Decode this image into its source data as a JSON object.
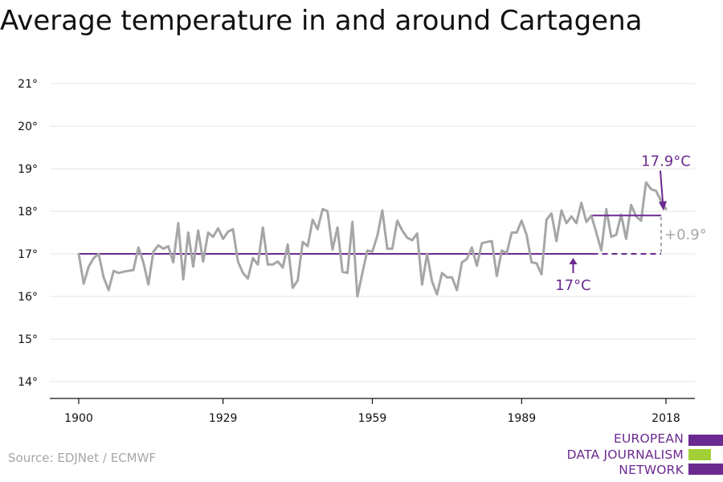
{
  "chart_data": {
    "type": "line",
    "title": "Average temperature in and around Cartagena",
    "xlabel": "",
    "ylabel": "",
    "x_ticks": [
      1900,
      1929,
      1959,
      1989,
      2018
    ],
    "y_ticks": [
      "14°",
      "15°",
      "16°",
      "17°",
      "18°",
      "19°",
      "20°",
      "21°"
    ],
    "y_tick_values": [
      14,
      15,
      16,
      17,
      18,
      19,
      20,
      21
    ],
    "xlim": [
      1900,
      2018
    ],
    "ylim": [
      14,
      21
    ],
    "grid": true,
    "series": [
      {
        "x": [
          1900,
          1901,
          1902,
          1903,
          1904,
          1905,
          1906,
          1907,
          1908,
          1909,
          1910,
          1911,
          1912,
          1913,
          1914,
          1915,
          1916,
          1917,
          1918,
          1919,
          1920,
          1921,
          1922,
          1923,
          1924,
          1925,
          1926,
          1927,
          1928,
          1929,
          1930,
          1931,
          1932,
          1933,
          1934,
          1935,
          1936,
          1937,
          1938,
          1939,
          1940,
          1941,
          1942,
          1943,
          1944,
          1945,
          1946,
          1947,
          1948,
          1949,
          1950,
          1951,
          1952,
          1953,
          1954,
          1955,
          1956,
          1957,
          1958,
          1959,
          1960,
          1961,
          1962,
          1963,
          1964,
          1965,
          1966,
          1967,
          1968,
          1969,
          1970,
          1971,
          1972,
          1973,
          1974,
          1975,
          1976,
          1977,
          1978,
          1979,
          1980,
          1981,
          1982,
          1983,
          1984,
          1985,
          1986,
          1987,
          1988,
          1989,
          1990,
          1991,
          1992,
          1993,
          1994,
          1995,
          1996,
          1997,
          1998,
          1999,
          2000,
          2001,
          2002,
          2003,
          2004,
          2005,
          2006,
          2007,
          2008,
          2009,
          2010,
          2011,
          2012,
          2013,
          2014,
          2015,
          2016,
          2017,
          2018
        ],
        "values": [
          17.0,
          16.3,
          16.7,
          16.9,
          17.0,
          16.45,
          16.15,
          16.6,
          16.55,
          16.58,
          16.6,
          16.62,
          17.15,
          16.8,
          16.28,
          17.05,
          17.2,
          17.12,
          17.18,
          16.8,
          17.72,
          16.4,
          17.5,
          16.7,
          17.55,
          16.82,
          17.5,
          17.4,
          17.6,
          17.35,
          17.52,
          17.58,
          16.82,
          16.55,
          16.42,
          16.9,
          16.75,
          17.62,
          16.75,
          16.75,
          16.82,
          16.68,
          17.22,
          16.2,
          16.38,
          17.28,
          17.18,
          17.8,
          17.58,
          18.05,
          18.0,
          17.1,
          17.62,
          16.58,
          16.55,
          17.75,
          16.0,
          16.55,
          17.08,
          17.05,
          17.42,
          18.02,
          17.12,
          17.12,
          17.78,
          17.55,
          17.38,
          17.32,
          17.48,
          16.28,
          17.0,
          16.35,
          16.05,
          16.55,
          16.45,
          16.45,
          16.15,
          16.8,
          16.88,
          17.15,
          16.72,
          17.25,
          17.28,
          17.3,
          16.48,
          17.08,
          17.02,
          17.5,
          17.5,
          17.78,
          17.45,
          16.8,
          16.78,
          16.52,
          17.8,
          17.95,
          17.3,
          18.02,
          17.72,
          17.88,
          17.72,
          18.2,
          17.75,
          17.9,
          17.5,
          17.08,
          18.05,
          17.4,
          17.45,
          17.92,
          17.35,
          18.15,
          17.88,
          17.78,
          18.68,
          18.52,
          18.48,
          18.25,
          18.05
        ]
      }
    ],
    "colors": {
      "line": "#a6a6a6",
      "accent": "#6b2a90",
      "grid": "#e6e6e6",
      "axis": "#111111"
    },
    "annotations": {
      "baseline_label": "17°C",
      "baseline_value": 17.0,
      "baseline_from": 1900,
      "baseline_to": 2000,
      "baseline_dashed_to": 2018,
      "recent_label": "17.9°C",
      "recent_value": 17.9,
      "recent_from": 2000,
      "recent_to": 2018,
      "difference_label": "+0.9°"
    }
  },
  "source": "Source: EDJNet / ECMWF",
  "logo": {
    "lines": [
      "EUROPEAN",
      "DATA JOURNALISM",
      "NETWORK"
    ],
    "bar_colors": [
      "#6b2a90",
      "#a3cf36",
      "#6b2a90"
    ]
  }
}
